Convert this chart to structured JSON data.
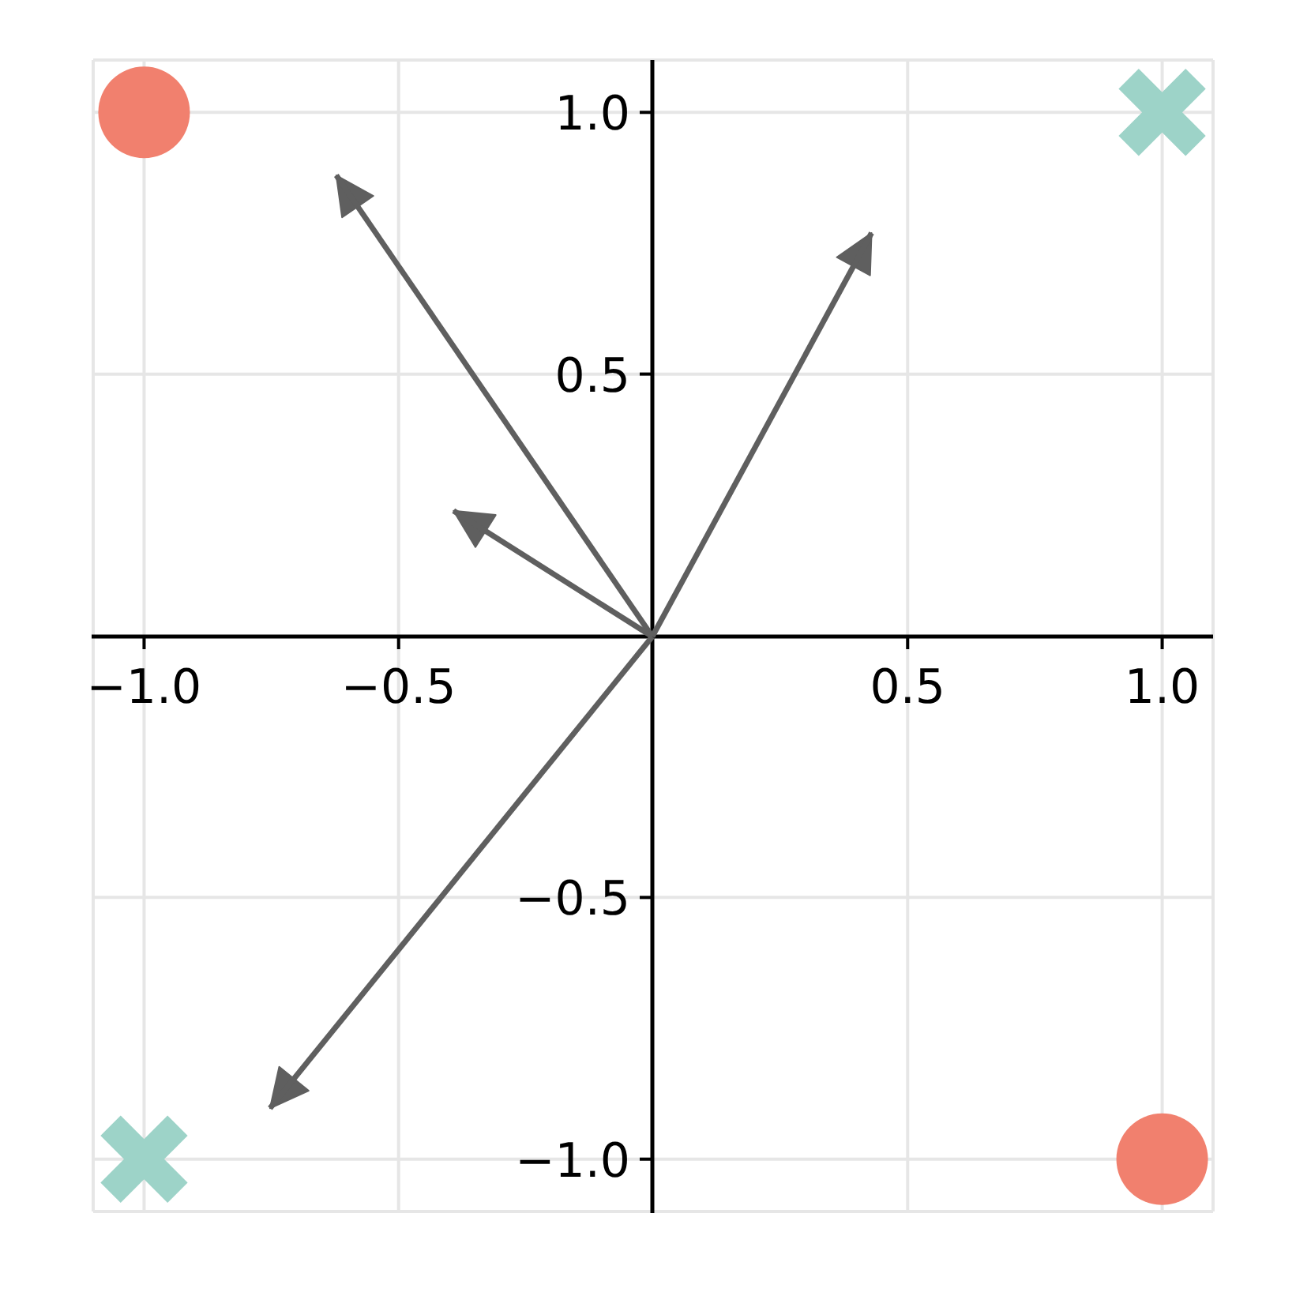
{
  "chart_data": {
    "type": "scatter",
    "xlim": [
      -1.1,
      1.1
    ],
    "ylim": [
      -1.1,
      1.1
    ],
    "xticks": [
      {
        "value": -1,
        "label": "−1.0"
      },
      {
        "value": -0.5,
        "label": "−0.5"
      },
      {
        "value": 0.5,
        "label": "0.5"
      },
      {
        "value": 1,
        "label": "1.0"
      }
    ],
    "yticks": [
      {
        "value": -1,
        "label": "−1.0"
      },
      {
        "value": -0.5,
        "label": "−0.5"
      },
      {
        "value": 0.5,
        "label": "0.5"
      },
      {
        "value": 1,
        "label": "1.0"
      }
    ],
    "grid": true,
    "series": [
      {
        "type": "scatter",
        "color": "#f1806e",
        "marker": "circle",
        "x": [
          -1,
          1
        ],
        "values": [
          1,
          -1
        ]
      },
      {
        "type": "scatter",
        "color": "#9dd3c8",
        "marker": "cross",
        "x": [
          1,
          -1
        ],
        "values": [
          1,
          -1
        ]
      },
      {
        "type": "line",
        "color": "#5f5f5f",
        "marker": "none",
        "x": [
          0,
          -0.62
        ],
        "values": [
          0,
          0.88
        ]
      },
      {
        "type": "line",
        "color": "#5f5f5f",
        "marker": "none",
        "x": [
          0,
          0.43
        ],
        "values": [
          0,
          0.77
        ]
      },
      {
        "type": "line",
        "color": "#5f5f5f",
        "marker": "none",
        "x": [
          0,
          -0.39
        ],
        "values": [
          0,
          0.24
        ]
      },
      {
        "type": "line",
        "color": "#5f5f5f",
        "marker": "none",
        "x": [
          0,
          -0.75
        ],
        "values": [
          0,
          -0.9
        ]
      }
    ]
  }
}
